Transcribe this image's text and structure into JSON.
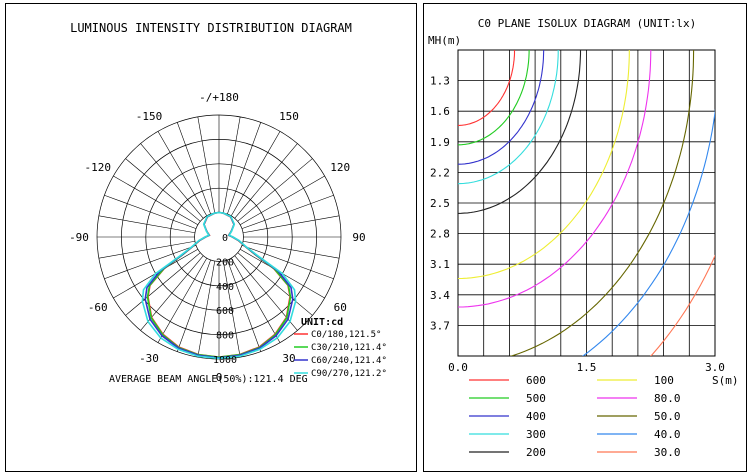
{
  "left": {
    "title": "LUMINOUS INTENSITY DISTRIBUTION DIAGRAM",
    "unit_label": "UNIT:cd",
    "footer": "AVERAGE BEAM ANGLE(50%):121.4 DEG"
  },
  "right": {
    "title": "C0 PLANE ISOLUX DIAGRAM (UNIT:lx)"
  },
  "chart_data": [
    {
      "type": "polar",
      "title": "LUMINOUS INTENSITY DISTRIBUTION DIAGRAM",
      "unit": "UNIT:cd",
      "angle_labels": [
        "-/+180",
        "150",
        "120",
        "90",
        "60",
        "30",
        "0",
        "-30",
        "-60",
        "-90",
        "-120",
        "-150"
      ],
      "radial_ticks": [
        "0",
        "200",
        "400",
        "600",
        "800",
        "1000"
      ],
      "rmax": 1000,
      "annotation": "AVERAGE BEAM ANGLE(50%):121.4 DEG",
      "legend_position": "bottom-right",
      "grid": true,
      "series": [
        {
          "name": "C0/180,121.5°",
          "color": "#ff3333",
          "curve": [
            [
              0,
              985
            ],
            [
              10,
              978
            ],
            [
              20,
              960
            ],
            [
              30,
              920
            ],
            [
              40,
              860
            ],
            [
              50,
              760
            ],
            [
              55,
              690
            ],
            [
              60,
              520
            ],
            [
              64,
              330
            ],
            [
              70,
              230
            ],
            [
              80,
              160
            ],
            [
              90,
              110
            ],
            [
              100,
              80
            ],
            [
              115,
              110
            ],
            [
              130,
              160
            ],
            [
              150,
              190
            ],
            [
              170,
              200
            ],
            [
              180,
              200
            ]
          ]
        },
        {
          "name": "C30/210,121.4°",
          "color": "#22cc22",
          "curve": [
            [
              0,
              985
            ],
            [
              10,
              980
            ],
            [
              20,
              965
            ],
            [
              30,
              925
            ],
            [
              40,
              865
            ],
            [
              50,
              765
            ],
            [
              55,
              695
            ],
            [
              60,
              525
            ],
            [
              64,
              335
            ],
            [
              70,
              232
            ],
            [
              80,
              162
            ],
            [
              90,
              112
            ],
            [
              100,
              82
            ],
            [
              115,
              112
            ],
            [
              130,
              162
            ],
            [
              150,
              192
            ],
            [
              170,
              200
            ],
            [
              180,
              200
            ]
          ]
        },
        {
          "name": "C60/240,121.4°",
          "color": "#3333cc",
          "curve": [
            [
              0,
              990
            ],
            [
              10,
              985
            ],
            [
              20,
              970
            ],
            [
              30,
              935
            ],
            [
              40,
              880
            ],
            [
              50,
              790
            ],
            [
              55,
              720
            ],
            [
              60,
              560
            ],
            [
              64,
              345
            ],
            [
              70,
              235
            ],
            [
              80,
              165
            ],
            [
              90,
              112
            ],
            [
              100,
              82
            ],
            [
              115,
              112
            ],
            [
              130,
              162
            ],
            [
              150,
              192
            ],
            [
              170,
              200
            ],
            [
              180,
              200
            ]
          ]
        },
        {
          "name": "C90/270,121.2°",
          "color": "#33dddd",
          "curve": [
            [
              0,
              995
            ],
            [
              10,
              992
            ],
            [
              20,
              980
            ],
            [
              30,
              955
            ],
            [
              40,
              905
            ],
            [
              50,
              820
            ],
            [
              55,
              755
            ],
            [
              60,
              600
            ],
            [
              64,
              360
            ],
            [
              70,
              238
            ],
            [
              80,
              168
            ],
            [
              90,
              114
            ],
            [
              100,
              84
            ],
            [
              115,
              114
            ],
            [
              130,
              164
            ],
            [
              150,
              194
            ],
            [
              170,
              200
            ],
            [
              180,
              200
            ]
          ]
        }
      ]
    },
    {
      "type": "line",
      "title": "C0 PLANE ISOLUX DIAGRAM (UNIT:lx)",
      "xlabel": "S(m)",
      "ylabel": "MH(m)",
      "xlim": [
        0,
        3.0
      ],
      "ylim": [
        4.0,
        1.0
      ],
      "x_ticks": [
        "0.0",
        "1.5",
        "3.0"
      ],
      "y_ticks": [
        "1.3",
        "1.6",
        "1.9",
        "2.2",
        "2.5",
        "2.8",
        "3.1",
        "3.4",
        "3.7"
      ],
      "grid": true,
      "legend_position": "bottom",
      "series": [
        {
          "name": "600",
          "color": "#ff3333",
          "r": 0.66
        },
        {
          "name": "500",
          "color": "#22cc22",
          "r": 0.83
        },
        {
          "name": "400",
          "color": "#3333cc",
          "r": 1.0
        },
        {
          "name": "300",
          "color": "#33dddd",
          "r": 1.17
        },
        {
          "name": "200",
          "color": "#222222",
          "r": 1.43
        },
        {
          "name": "100",
          "color": "#eeee33",
          "r": 2.0
        },
        {
          "name": "80.0",
          "color": "#ee33ee",
          "r": 2.25
        },
        {
          "name": "50.0",
          "color": "#666600",
          "r": 2.75
        },
        {
          "name": "40.0",
          "color": "#3388ee",
          "r": 3.05
        },
        {
          "name": "30.0",
          "color": "#ff7755",
          "r": 3.5
        }
      ]
    }
  ]
}
